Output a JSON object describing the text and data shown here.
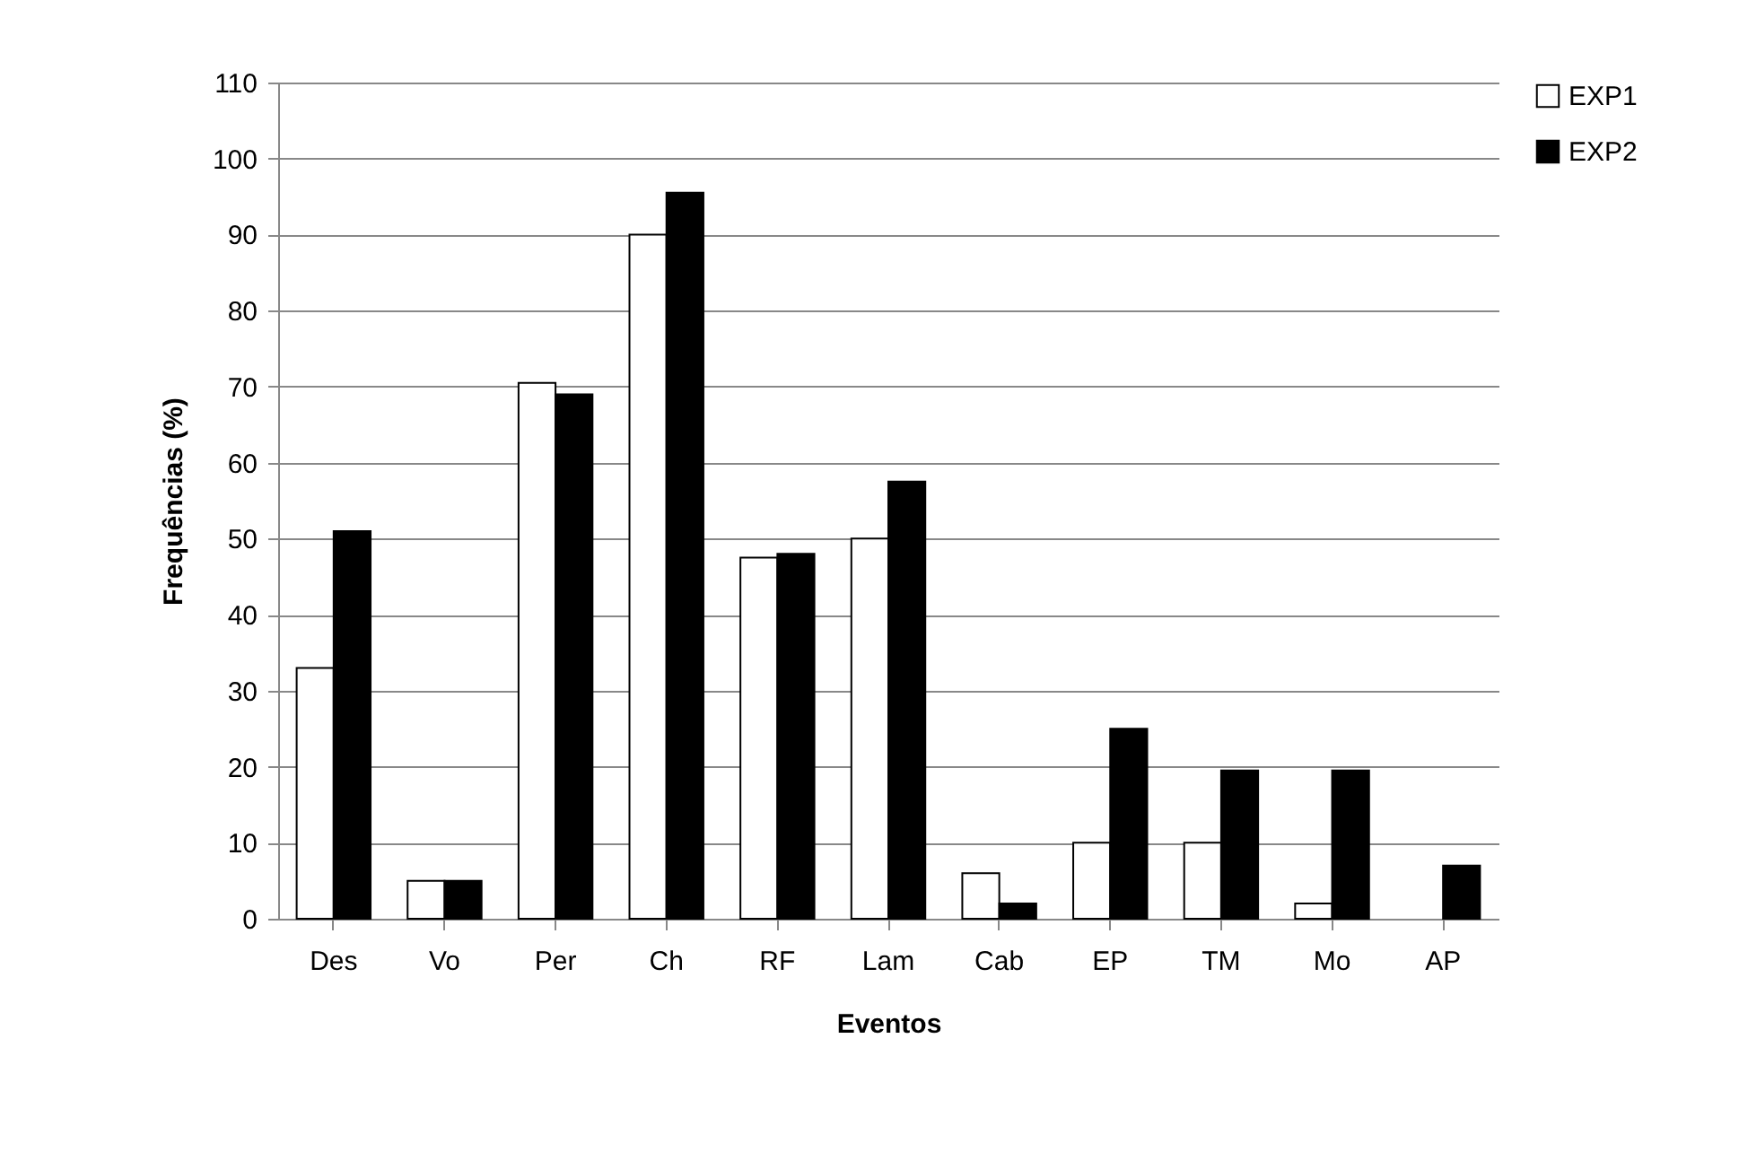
{
  "chart_data": {
    "type": "bar",
    "xlabel": "Eventos",
    "ylabel": "Frequências (%)",
    "categories": [
      "Des",
      "Vo",
      "Per",
      "Ch",
      "RF",
      "Lam",
      "Cab",
      "EP",
      "TM",
      "Mo",
      "AP"
    ],
    "series": [
      {
        "name": "EXP1",
        "color": "#ffffff",
        "values": [
          33,
          5,
          70.5,
          90,
          47.5,
          50,
          6,
          10,
          10,
          2,
          null
        ]
      },
      {
        "name": "EXP2",
        "color": "#000000",
        "values": [
          51,
          5,
          69,
          95.5,
          48,
          57.5,
          2,
          25,
          19.5,
          19.5,
          7
        ]
      }
    ],
    "ylim": [
      0,
      110
    ],
    "yticks": [
      0,
      10,
      20,
      30,
      40,
      50,
      60,
      70,
      80,
      90,
      100,
      110
    ],
    "grid": "y",
    "legend": "right"
  }
}
